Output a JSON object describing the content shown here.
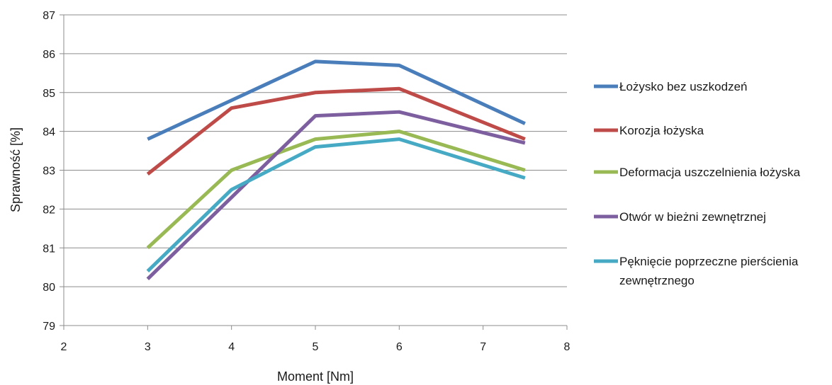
{
  "chart_data": {
    "type": "line",
    "title": "",
    "xlabel": "Moment [Nm]",
    "ylabel": "Sprawność [%]",
    "xlim": [
      2,
      8
    ],
    "ylim": [
      79,
      87
    ],
    "xticks": [
      2,
      3,
      4,
      5,
      6,
      7,
      8
    ],
    "yticks": [
      79,
      80,
      81,
      82,
      83,
      84,
      85,
      86,
      87
    ],
    "grid": "horizontal",
    "legend_position": "right",
    "x": [
      3,
      4,
      5,
      6,
      7.5
    ],
    "series": [
      {
        "name": "Łożysko bez uszkodzeń",
        "color": "#4a7ebb",
        "values": [
          83.8,
          84.8,
          85.8,
          85.7,
          84.2
        ]
      },
      {
        "name": "Korozja łożyska",
        "color": "#be4b48",
        "values": [
          82.9,
          84.6,
          85.0,
          85.1,
          83.8
        ]
      },
      {
        "name": "Deformacja uszczelnienia łożyska",
        "color": "#98b954",
        "values": [
          81.0,
          83.0,
          83.8,
          84.0,
          83.0
        ]
      },
      {
        "name": "Otwór w bieżni zewnętrznej",
        "color": "#7d5fa0",
        "values": [
          80.2,
          82.3,
          84.4,
          84.5,
          83.7
        ]
      },
      {
        "name": [
          "Pęknięcie poprzeczne pierścienia",
          "zewnętrznego"
        ],
        "color": "#46aac5",
        "values": [
          80.4,
          82.5,
          83.6,
          83.8,
          82.8
        ]
      }
    ]
  }
}
